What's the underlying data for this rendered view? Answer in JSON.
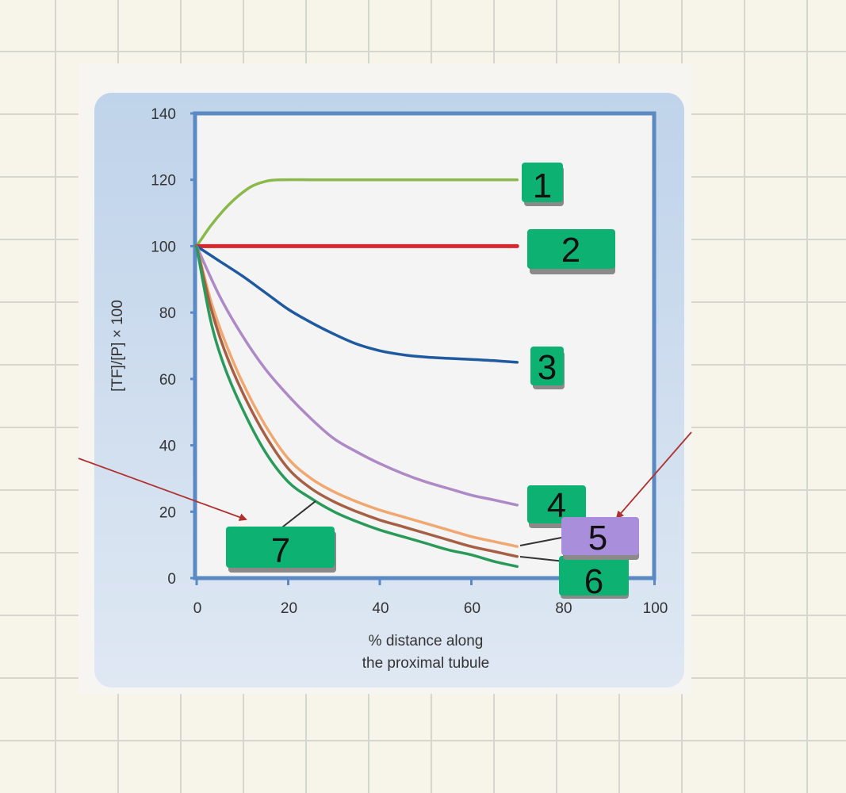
{
  "chart_data": {
    "type": "line",
    "xlabel_lines": [
      "% distance along",
      "the proximal tubule"
    ],
    "ylabel": "[TF]/[P] × 100",
    "xlim": [
      0,
      100
    ],
    "ylim": [
      0,
      140
    ],
    "x_ticks": [
      "0",
      "20",
      "40",
      "60",
      "80",
      "100"
    ],
    "y_ticks": [
      "0",
      "20",
      "40",
      "60",
      "80",
      "100",
      "120",
      "140"
    ],
    "grid": false,
    "series": [
      {
        "color": "#8ab84a",
        "x": [
          0,
          3,
          6,
          9,
          12,
          15,
          18,
          25,
          35,
          50,
          70
        ],
        "y": [
          100,
          106,
          111,
          115,
          118,
          119.5,
          120,
          120,
          120,
          120,
          120
        ]
      },
      {
        "color": "#d8282f",
        "x": [
          0,
          70
        ],
        "y": [
          100,
          100
        ]
      },
      {
        "color": "#1f5aa0",
        "x": [
          0,
          5,
          10,
          15,
          20,
          25,
          30,
          35,
          40,
          45,
          50,
          55,
          60,
          65,
          70
        ],
        "y": [
          100,
          95.5,
          91,
          86,
          81,
          77,
          73.5,
          70.5,
          68.5,
          67.3,
          66.6,
          66.2,
          65.9,
          65.5,
          65
        ]
      },
      {
        "color": "#ad89c6",
        "x": [
          0,
          5,
          10,
          15,
          20,
          25,
          30,
          35,
          40,
          45,
          50,
          55,
          60,
          65,
          70
        ],
        "y": [
          100,
          85,
          73,
          63,
          55,
          48,
          42,
          38,
          34.5,
          31.5,
          29,
          27,
          25,
          23.5,
          22
        ]
      },
      {
        "color": "#f0a870",
        "x": [
          0,
          3,
          6,
          10,
          15,
          20,
          25,
          30,
          35,
          40,
          45,
          50,
          55,
          60,
          65,
          70
        ],
        "y": [
          100,
          84,
          72,
          59,
          46,
          36,
          30,
          26,
          23,
          20.5,
          18.5,
          16.5,
          14.5,
          12.5,
          11,
          9.5
        ]
      },
      {
        "color": "#a45f45",
        "x": [
          0,
          3,
          6,
          10,
          15,
          20,
          25,
          30,
          35,
          40,
          45,
          50,
          55,
          60,
          65,
          70
        ],
        "y": [
          100,
          82,
          69,
          56,
          43,
          33,
          27,
          23,
          20,
          17.5,
          15.5,
          13.5,
          11.5,
          9.5,
          8,
          6.5
        ]
      },
      {
        "color": "#2a9a5a",
        "x": [
          0,
          3,
          6,
          10,
          15,
          20,
          25,
          30,
          35,
          40,
          45,
          50,
          55,
          60,
          65,
          70
        ],
        "y": [
          100,
          78,
          64,
          51,
          38,
          29,
          24,
          20,
          17,
          14.5,
          12.5,
          10.5,
          8.5,
          7,
          5,
          3.5
        ]
      }
    ]
  },
  "labels": [
    {
      "text": "1",
      "color": "#0db272"
    },
    {
      "text": "2",
      "color": "#0db272"
    },
    {
      "text": "3",
      "color": "#0db272"
    },
    {
      "text": "4",
      "color": "#0db272"
    },
    {
      "text": "5",
      "color": "#a98edc"
    },
    {
      "text": "6",
      "color": "#0db272"
    },
    {
      "text": "7",
      "color": "#0db272"
    }
  ]
}
